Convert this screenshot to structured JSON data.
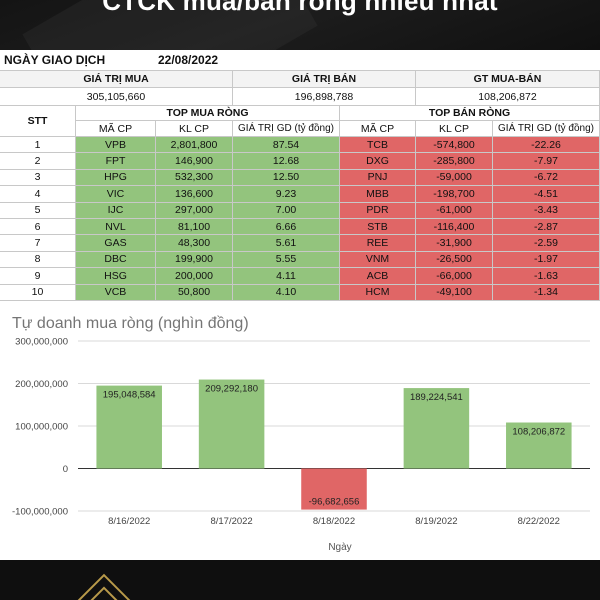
{
  "banner": {
    "title": "CTCK mua/bán ròng nhiều nhất"
  },
  "summary": {
    "date_label": "NGÀY GIAO DỊCH",
    "date_value": "22/08/2022",
    "buy_label": "GIÁ TRỊ MUA",
    "buy_value": "305,105,660",
    "sell_label": "GIÁ TRỊ BÁN",
    "sell_value": "196,898,788",
    "net_label": "GT MUA-BÁN",
    "net_value": "108,206,872"
  },
  "table": {
    "stt_label": "STT",
    "top_buy_label": "TOP MUA RÒNG",
    "top_sell_label": "TOP BÁN RÒNG",
    "col_code": "MÃ CP",
    "col_volume": "KL CP",
    "col_value": "GIÁ TRỊ GD (tỷ đồng)",
    "rows": [
      {
        "stt": "1",
        "buy_code": "VPB",
        "buy_vol": "2,801,800",
        "buy_val": "87.54",
        "sell_code": "TCB",
        "sell_vol": "-574,800",
        "sell_val": "-22.26"
      },
      {
        "stt": "2",
        "buy_code": "FPT",
        "buy_vol": "146,900",
        "buy_val": "12.68",
        "sell_code": "DXG",
        "sell_vol": "-285,800",
        "sell_val": "-7.97"
      },
      {
        "stt": "3",
        "buy_code": "HPG",
        "buy_vol": "532,300",
        "buy_val": "12.50",
        "sell_code": "PNJ",
        "sell_vol": "-59,000",
        "sell_val": "-6.72"
      },
      {
        "stt": "4",
        "buy_code": "VIC",
        "buy_vol": "136,600",
        "buy_val": "9.23",
        "sell_code": "MBB",
        "sell_vol": "-198,700",
        "sell_val": "-4.51"
      },
      {
        "stt": "5",
        "buy_code": "IJC",
        "buy_vol": "297,000",
        "buy_val": "7.00",
        "sell_code": "PDR",
        "sell_vol": "-61,000",
        "sell_val": "-3.43"
      },
      {
        "stt": "6",
        "buy_code": "NVL",
        "buy_vol": "81,100",
        "buy_val": "6.66",
        "sell_code": "STB",
        "sell_vol": "-116,400",
        "sell_val": "-2.87"
      },
      {
        "stt": "7",
        "buy_code": "GAS",
        "buy_vol": "48,300",
        "buy_val": "5.61",
        "sell_code": "REE",
        "sell_vol": "-31,900",
        "sell_val": "-2.59"
      },
      {
        "stt": "8",
        "buy_code": "DBC",
        "buy_vol": "199,900",
        "buy_val": "5.55",
        "sell_code": "VNM",
        "sell_vol": "-26,500",
        "sell_val": "-1.97"
      },
      {
        "stt": "9",
        "buy_code": "HSG",
        "buy_vol": "200,000",
        "buy_val": "4.11",
        "sell_code": "ACB",
        "sell_vol": "-66,000",
        "sell_val": "-1.63"
      },
      {
        "stt": "10",
        "buy_code": "VCB",
        "buy_vol": "50,800",
        "buy_val": "4.10",
        "sell_code": "HCM",
        "sell_vol": "-49,100",
        "sell_val": "-1.34"
      }
    ]
  },
  "colors": {
    "buy": "#93c47d",
    "sell": "#e06666",
    "grid": "#d9d9d9"
  },
  "chart_data": {
    "type": "bar",
    "title": "Tự doanh mua ròng (nghìn đồng)",
    "xlabel": "Ngày",
    "ylabel": "",
    "categories": [
      "8/16/2022",
      "8/17/2022",
      "8/18/2022",
      "8/19/2022",
      "8/22/2022"
    ],
    "values": [
      195048584,
      209292180,
      -96682656,
      189224541,
      108206872
    ],
    "data_labels": [
      "195,048,584",
      "209,292,180",
      "-96,682,656",
      "189,224,541",
      "108,206,872"
    ],
    "ylim": [
      -100000000,
      300000000
    ],
    "yticks": [
      -100000000,
      0,
      100000000,
      200000000,
      300000000
    ],
    "ytick_labels": [
      "-100,000,000",
      "0",
      "100,000,000",
      "200,000,000",
      "300,000,000"
    ],
    "grid": true,
    "legend": "none"
  }
}
